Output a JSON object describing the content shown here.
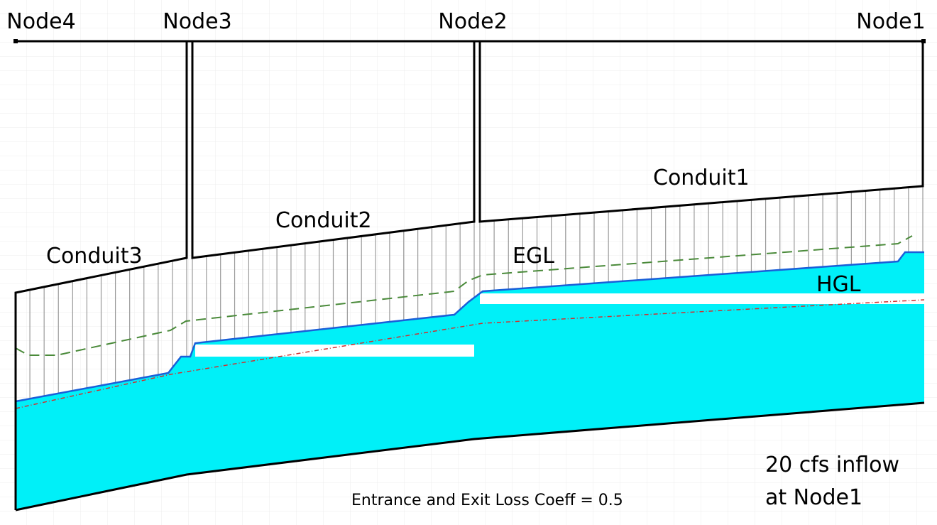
{
  "nodes": [
    {
      "label": "Node4"
    },
    {
      "label": "Node3"
    },
    {
      "label": "Node2"
    },
    {
      "label": "Node1"
    }
  ],
  "conduits": [
    {
      "label": "Conduit3"
    },
    {
      "label": "Conduit2"
    },
    {
      "label": "Conduit1"
    }
  ],
  "lines": {
    "egl": "EGL",
    "hgl": "HGL"
  },
  "note": {
    "lines": [
      "20 cfs inflow",
      "at Node1"
    ]
  },
  "caption": "Entrance and Exit Loss Coeff = 0.5"
}
